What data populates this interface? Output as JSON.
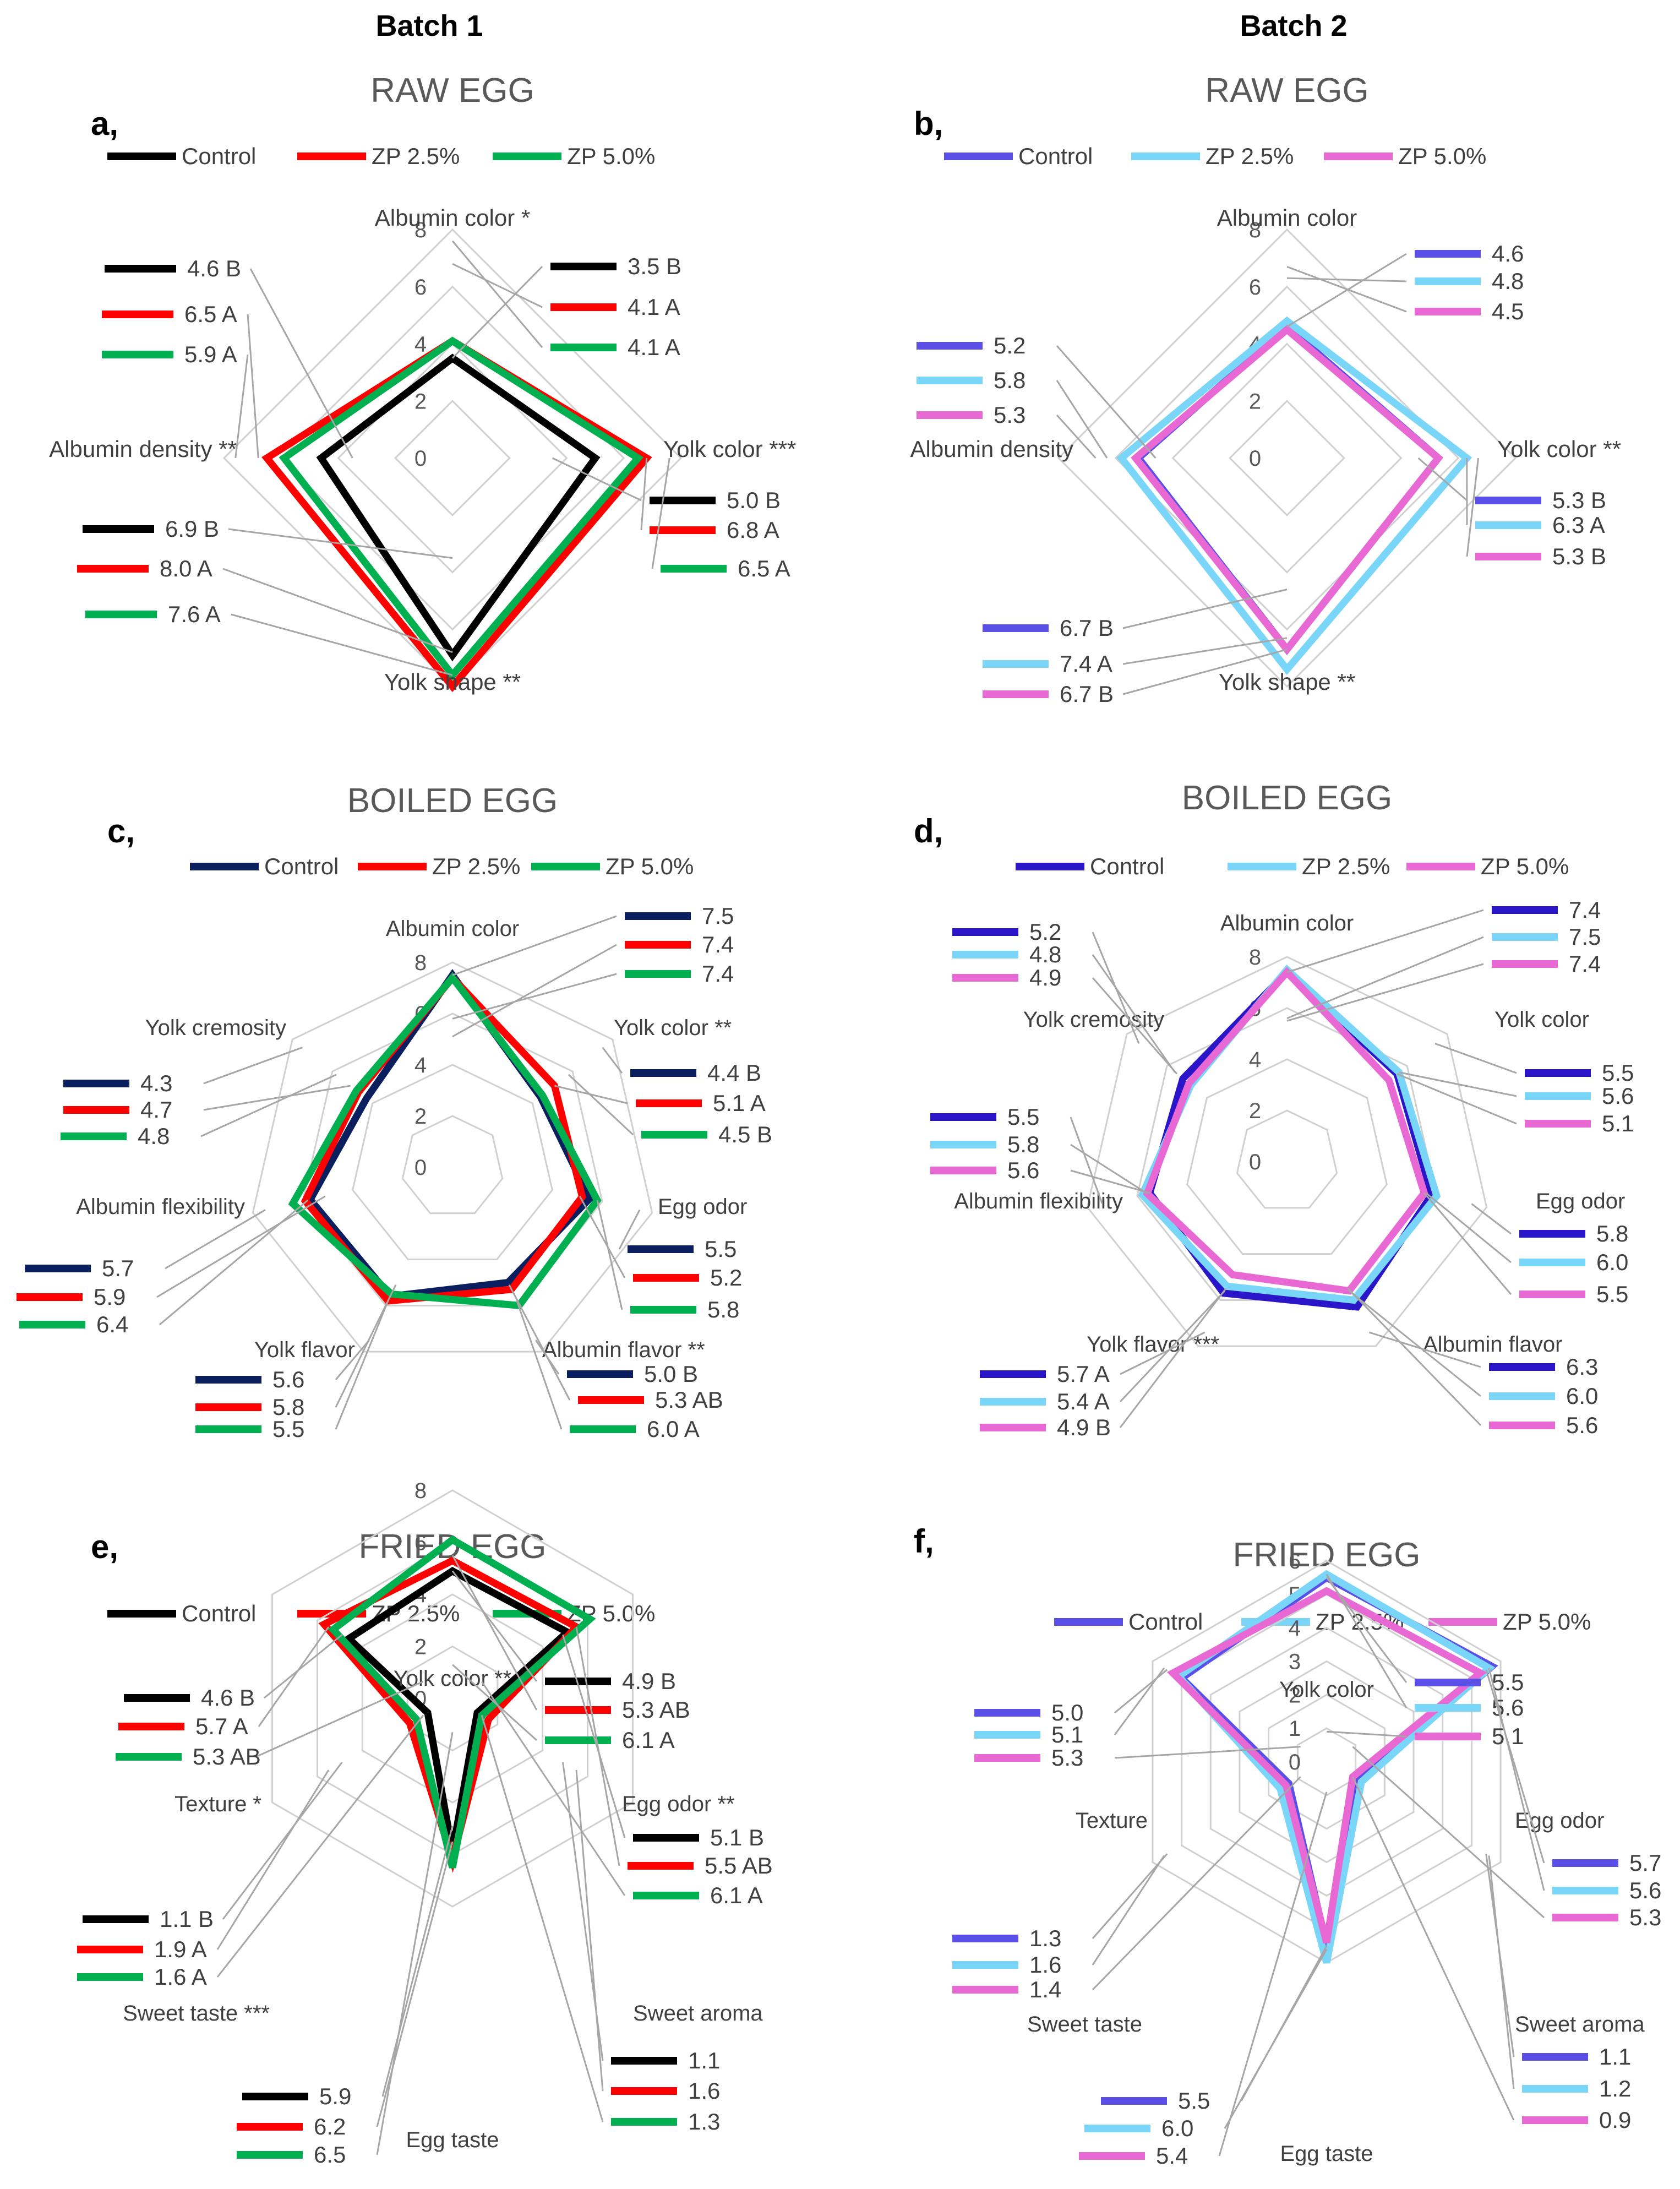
{
  "headers": {
    "batch1": "Batch 1",
    "batch2": "Batch 2"
  },
  "chart_data": [
    {
      "type": "radar",
      "letter": "a,",
      "title": "RAW EGG",
      "max": 8,
      "ticks": [
        0,
        2,
        4,
        6,
        8
      ],
      "axes": [
        "Albumin color *",
        "Yolk color ***",
        "Yolk shape **",
        "Albumin density **"
      ],
      "series": [
        {
          "name": "Control",
          "color": "#000000",
          "values": [
            3.5,
            5.0,
            6.9,
            4.6
          ],
          "labels": [
            "3.5 B",
            "5.0 B",
            "6.9 B",
            "4.6 B"
          ]
        },
        {
          "name": "ZP 2.5%",
          "color": "#ff0000",
          "values": [
            4.1,
            6.8,
            8.0,
            6.5
          ],
          "labels": [
            "4.1 A",
            "6.8 A",
            "8.0 A",
            "6.5 A"
          ]
        },
        {
          "name": "ZP 5.0%",
          "color": "#00b050",
          "values": [
            4.1,
            6.5,
            7.6,
            5.9
          ],
          "labels": [
            "4.1 A",
            "6.5 A",
            "7.6 A",
            "5.9 A"
          ]
        }
      ]
    },
    {
      "type": "radar",
      "letter": "b,",
      "title": "RAW EGG",
      "max": 8,
      "ticks": [
        0,
        2,
        4,
        6,
        8
      ],
      "axes": [
        "Albumin color",
        "Yolk color **",
        "Yolk shape **",
        "Albumin density"
      ],
      "series": [
        {
          "name": "Control",
          "color": "#5a50e8",
          "values": [
            4.6,
            5.3,
            6.7,
            5.2
          ],
          "labels": [
            "4.6",
            "5.3 B",
            "6.7 B",
            "5.2"
          ]
        },
        {
          "name": "ZP 2.5%",
          "color": "#79d6f8",
          "values": [
            4.8,
            6.3,
            7.4,
            5.8
          ],
          "labels": [
            "4.8",
            "6.3 A",
            "7.4 A",
            "5.8"
          ]
        },
        {
          "name": "ZP 5.0%",
          "color": "#e869d4",
          "values": [
            4.5,
            5.3,
            6.7,
            5.3
          ],
          "labels": [
            "4.5",
            "5.3 B",
            "6.7 B",
            "5.3"
          ]
        }
      ]
    },
    {
      "type": "radar",
      "letter": "c,",
      "title": "BOILED EGG",
      "max": 8,
      "ticks": [
        0,
        2,
        4,
        6,
        8
      ],
      "axes": [
        "Albumin color",
        "Yolk color **",
        "Egg odor",
        "Albumin flavor **",
        "Yolk flavor",
        "Albumin flexibility",
        "Yolk cremosity"
      ],
      "series": [
        {
          "name": "Control",
          "color": "#0b1f5e",
          "values": [
            7.5,
            4.4,
            5.5,
            5.0,
            5.6,
            5.7,
            4.3
          ],
          "labels": [
            "7.5",
            "4.4 B",
            "5.5",
            "5.0 B",
            "5.6",
            "5.7",
            "4.3"
          ]
        },
        {
          "name": "ZP 2.5%",
          "color": "#ff0000",
          "values": [
            7.4,
            5.1,
            5.2,
            5.3,
            5.8,
            5.9,
            4.7
          ],
          "labels": [
            "7.4",
            "5.1 A",
            "5.2",
            "5.3 AB",
            "5.8",
            "5.9",
            "4.7"
          ]
        },
        {
          "name": "ZP 5.0%",
          "color": "#00b050",
          "values": [
            7.4,
            4.5,
            5.8,
            6.0,
            5.5,
            6.4,
            4.8
          ],
          "labels": [
            "7.4",
            "4.5 B",
            "5.8",
            "6.0 A",
            "5.5",
            "6.4",
            "4.8"
          ]
        }
      ]
    },
    {
      "type": "radar",
      "letter": "d,",
      "title": "BOILED EGG",
      "max": 8,
      "ticks": [
        0,
        2,
        4,
        6,
        8
      ],
      "axes": [
        "Albumin color",
        "Yolk color",
        "Egg odor",
        "Albumin flavor",
        "Yolk flavor ***",
        "Albumin flexibility",
        "Yolk cremosity"
      ],
      "series": [
        {
          "name": "Control",
          "color": "#2a16c8",
          "values": [
            7.4,
            5.5,
            5.8,
            6.3,
            5.7,
            5.5,
            5.2
          ],
          "labels": [
            "7.4",
            "5.5",
            "5.8",
            "6.3",
            "5.7 A",
            "5.5",
            "5.2"
          ]
        },
        {
          "name": "ZP 2.5%",
          "color": "#79d6f8",
          "values": [
            7.5,
            5.6,
            6.0,
            6.0,
            5.4,
            5.8,
            4.8
          ],
          "labels": [
            "7.5",
            "5.6",
            "6.0",
            "6.0",
            "5.4 A",
            "5.8",
            "4.8"
          ]
        },
        {
          "name": "ZP 5.0%",
          "color": "#e869d4",
          "values": [
            7.4,
            5.1,
            5.5,
            5.6,
            4.9,
            5.6,
            4.9
          ],
          "labels": [
            "7.4",
            "5.1",
            "5.5",
            "5.6",
            "4.9 B",
            "5.6",
            "4.9"
          ]
        }
      ]
    },
    {
      "type": "radar",
      "letter": "e,",
      "title": "FRIED EGG",
      "max": 8,
      "ticks": [
        0,
        2,
        4,
        6,
        8
      ],
      "axes": [
        "Yolk color **",
        "Egg odor **",
        "Sweet aroma",
        "Egg taste",
        "Sweet taste ***",
        "Texture *"
      ],
      "series": [
        {
          "name": "Control",
          "color": "#000000",
          "values": [
            4.9,
            5.1,
            1.1,
            5.9,
            1.1,
            4.6
          ],
          "labels": [
            "4.9 B",
            "5.1 B",
            "1.1",
            "5.9",
            "1.1 B",
            "4.6 B"
          ]
        },
        {
          "name": "ZP 2.5%",
          "color": "#ff0000",
          "values": [
            5.3,
            5.5,
            1.6,
            6.2,
            1.9,
            5.7
          ],
          "labels": [
            "5.3 AB",
            "5.5 AB",
            "1.6",
            "6.2",
            "1.9 A",
            "5.7 A"
          ]
        },
        {
          "name": "ZP 5.0%",
          "color": "#00b050",
          "values": [
            6.1,
            6.1,
            1.3,
            6.5,
            1.6,
            5.3
          ],
          "labels": [
            "6.1 A",
            "6.1 A",
            "1.3",
            "6.5",
            "1.6 A",
            "5.3 AB"
          ]
        }
      ]
    },
    {
      "type": "radar",
      "letter": "f,",
      "title": "FRIED EGG",
      "max": 6,
      "ticks": [
        0,
        1,
        2,
        3,
        4,
        5,
        6
      ],
      "axes": [
        "Yolk color",
        "Egg odor",
        "Sweet aroma",
        "Egg taste",
        "Sweet taste",
        "Texture"
      ],
      "series": [
        {
          "name": "Control",
          "color": "#5a50e8",
          "values": [
            5.5,
            5.7,
            1.1,
            5.5,
            1.3,
            5.0
          ],
          "labels": [
            "5.5",
            "5.7",
            "1.1",
            "5.5",
            "1.3",
            "5.0"
          ]
        },
        {
          "name": "ZP 2.5%",
          "color": "#79d6f8",
          "values": [
            5.6,
            5.6,
            1.2,
            6.0,
            1.6,
            5.1
          ],
          "labels": [
            "5.6",
            "5.6",
            "1.2",
            "6.0",
            "1.6",
            "5.1"
          ]
        },
        {
          "name": "ZP 5.0%",
          "color": "#e869d4",
          "values": [
            5.1,
            5.3,
            0.9,
            5.4,
            1.4,
            5.3
          ],
          "labels": [
            "5.1",
            "5.3",
            "0.9",
            "5.4",
            "1.4",
            "5.3"
          ]
        }
      ]
    }
  ]
}
